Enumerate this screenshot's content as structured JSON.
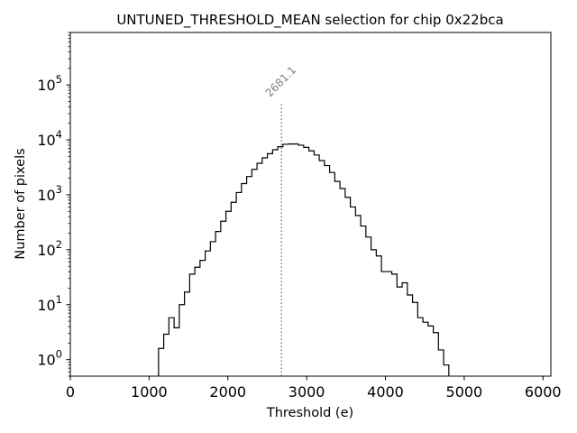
{
  "chart_data": {
    "type": "histogram",
    "scale_y": "log",
    "title": "UNTUNED_THRESHOLD_MEAN selection for chip 0x22bca",
    "xlabel": "Threshold (e)",
    "ylabel": "Number of pixels",
    "xlim": [
      0,
      6100
    ],
    "ylim": [
      0.5,
      900000
    ],
    "x_ticks": [
      {
        "value": 0,
        "label": "0"
      },
      {
        "value": 1000,
        "label": "1000"
      },
      {
        "value": 2000,
        "label": "2000"
      },
      {
        "value": 3000,
        "label": "3000"
      },
      {
        "value": 4000,
        "label": "4000"
      },
      {
        "value": 5000,
        "label": "5000"
      },
      {
        "value": 6000,
        "label": "6000"
      }
    ],
    "y_ticks": [
      {
        "value": 1,
        "base": "10",
        "exp": "0"
      },
      {
        "value": 10,
        "base": "10",
        "exp": "1"
      },
      {
        "value": 100,
        "base": "10",
        "exp": "2"
      },
      {
        "value": 1000,
        "base": "10",
        "exp": "3"
      },
      {
        "value": 10000,
        "base": "10",
        "exp": "4"
      },
      {
        "value": 100000,
        "base": "10",
        "exp": "5"
      }
    ],
    "bin_start": 1120,
    "bin_width": 65.8,
    "counts": [
      1.6,
      2.9,
      5.8,
      3.8,
      10,
      17,
      36,
      48,
      64,
      95,
      140,
      215,
      330,
      500,
      730,
      1100,
      1600,
      2150,
      2900,
      3750,
      4700,
      5600,
      6600,
      7500,
      8300,
      8400,
      8400,
      8000,
      7300,
      6300,
      5300,
      4200,
      3400,
      2550,
      1750,
      1300,
      900,
      600,
      420,
      270,
      170,
      100,
      77,
      40,
      40,
      36,
      21,
      25,
      15,
      11,
      5.8,
      4.8,
      4.1,
      3.1,
      1.5,
      0.8
    ],
    "mean_line": {
      "value": 2681.1,
      "label": "2681.1",
      "top": 45000
    }
  }
}
